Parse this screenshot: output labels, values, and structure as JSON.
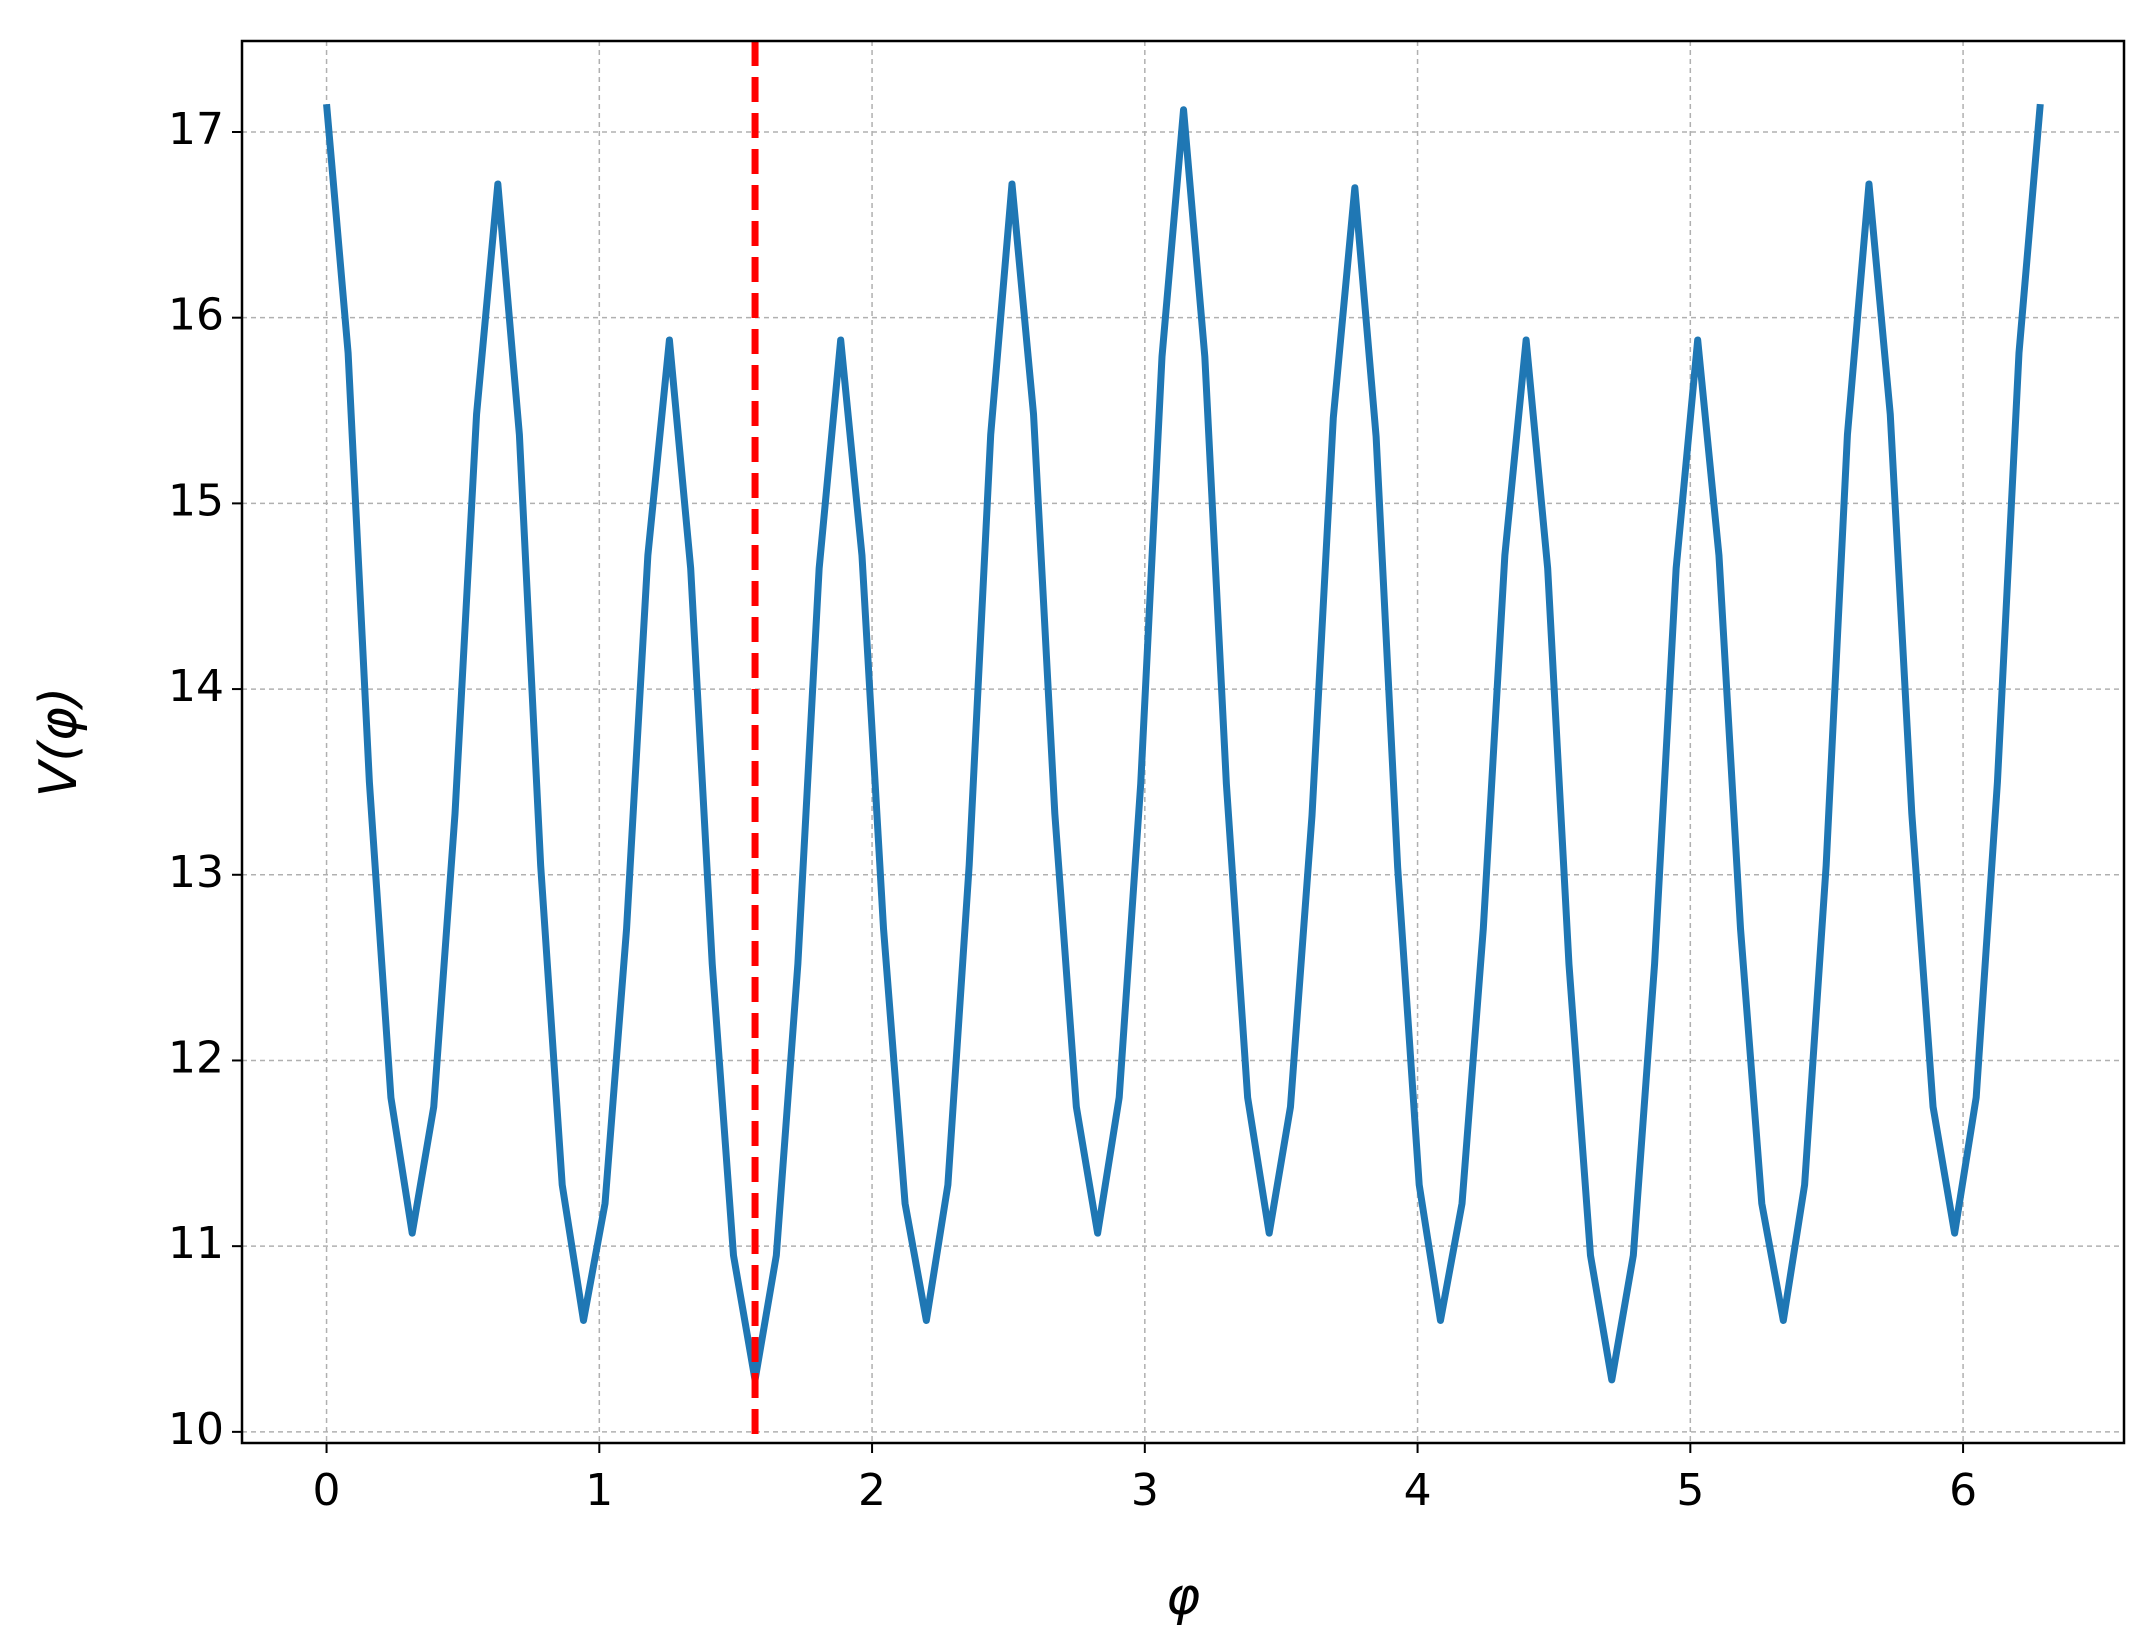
{
  "chart_data": {
    "type": "line",
    "xlabel": "φ",
    "ylabel": "V(φ)",
    "x": [
      0.0,
      0.079,
      0.157,
      0.236,
      0.314,
      0.393,
      0.471,
      0.55,
      0.628,
      0.707,
      0.785,
      0.864,
      0.942,
      1.021,
      1.1,
      1.178,
      1.257,
      1.335,
      1.414,
      1.492,
      1.571,
      1.649,
      1.728,
      1.806,
      1.885,
      1.963,
      2.042,
      2.121,
      2.199,
      2.278,
      2.356,
      2.435,
      2.513,
      2.592,
      2.67,
      2.749,
      2.827,
      2.906,
      2.985,
      3.063,
      3.142,
      3.22,
      3.299,
      3.377,
      3.456,
      3.534,
      3.613,
      3.691,
      3.77,
      3.848,
      3.927,
      4.006,
      4.084,
      4.163,
      4.241,
      4.32,
      4.398,
      4.477,
      4.555,
      4.634,
      4.712,
      4.791,
      4.869,
      4.948,
      5.027,
      5.105,
      5.184,
      5.262,
      5.341,
      5.419,
      5.498,
      5.576,
      5.655,
      5.733,
      5.812,
      5.89,
      5.969,
      6.048,
      6.126,
      6.205,
      6.283
    ],
    "series": [
      {
        "color": "#1f77b4",
        "values": [
          17.15,
          15.81,
          13.5,
          11.8,
          11.07,
          11.75,
          13.33,
          15.48,
          16.72,
          15.37,
          13.05,
          11.33,
          10.6,
          11.23,
          12.71,
          14.72,
          15.88,
          14.65,
          12.52,
          10.95,
          10.28,
          10.95,
          12.52,
          14.65,
          15.88,
          14.72,
          12.71,
          11.23,
          10.6,
          11.33,
          13.05,
          15.37,
          16.72,
          15.48,
          13.33,
          11.75,
          11.07,
          11.8,
          13.49,
          15.79,
          17.12,
          15.79,
          13.49,
          11.8,
          11.07,
          11.75,
          13.32,
          15.46,
          16.7,
          15.36,
          13.04,
          11.33,
          10.6,
          11.23,
          12.71,
          14.72,
          15.88,
          14.65,
          12.52,
          10.95,
          10.28,
          10.95,
          12.52,
          14.65,
          15.88,
          14.72,
          12.71,
          11.23,
          10.6,
          11.33,
          13.05,
          15.37,
          16.72,
          15.48,
          13.33,
          11.75,
          11.07,
          11.8,
          13.5,
          15.81,
          17.15
        ]
      }
    ],
    "vline": {
      "x": 1.571,
      "color": "#ff0000"
    },
    "xlim": [
      -0.31,
      6.59
    ],
    "ylim": [
      9.94,
      17.49
    ],
    "xticks": [
      0,
      1,
      2,
      3,
      4,
      5,
      6
    ],
    "yticks": [
      10,
      11,
      12,
      13,
      14,
      15,
      16,
      17
    ],
    "grid": true
  }
}
